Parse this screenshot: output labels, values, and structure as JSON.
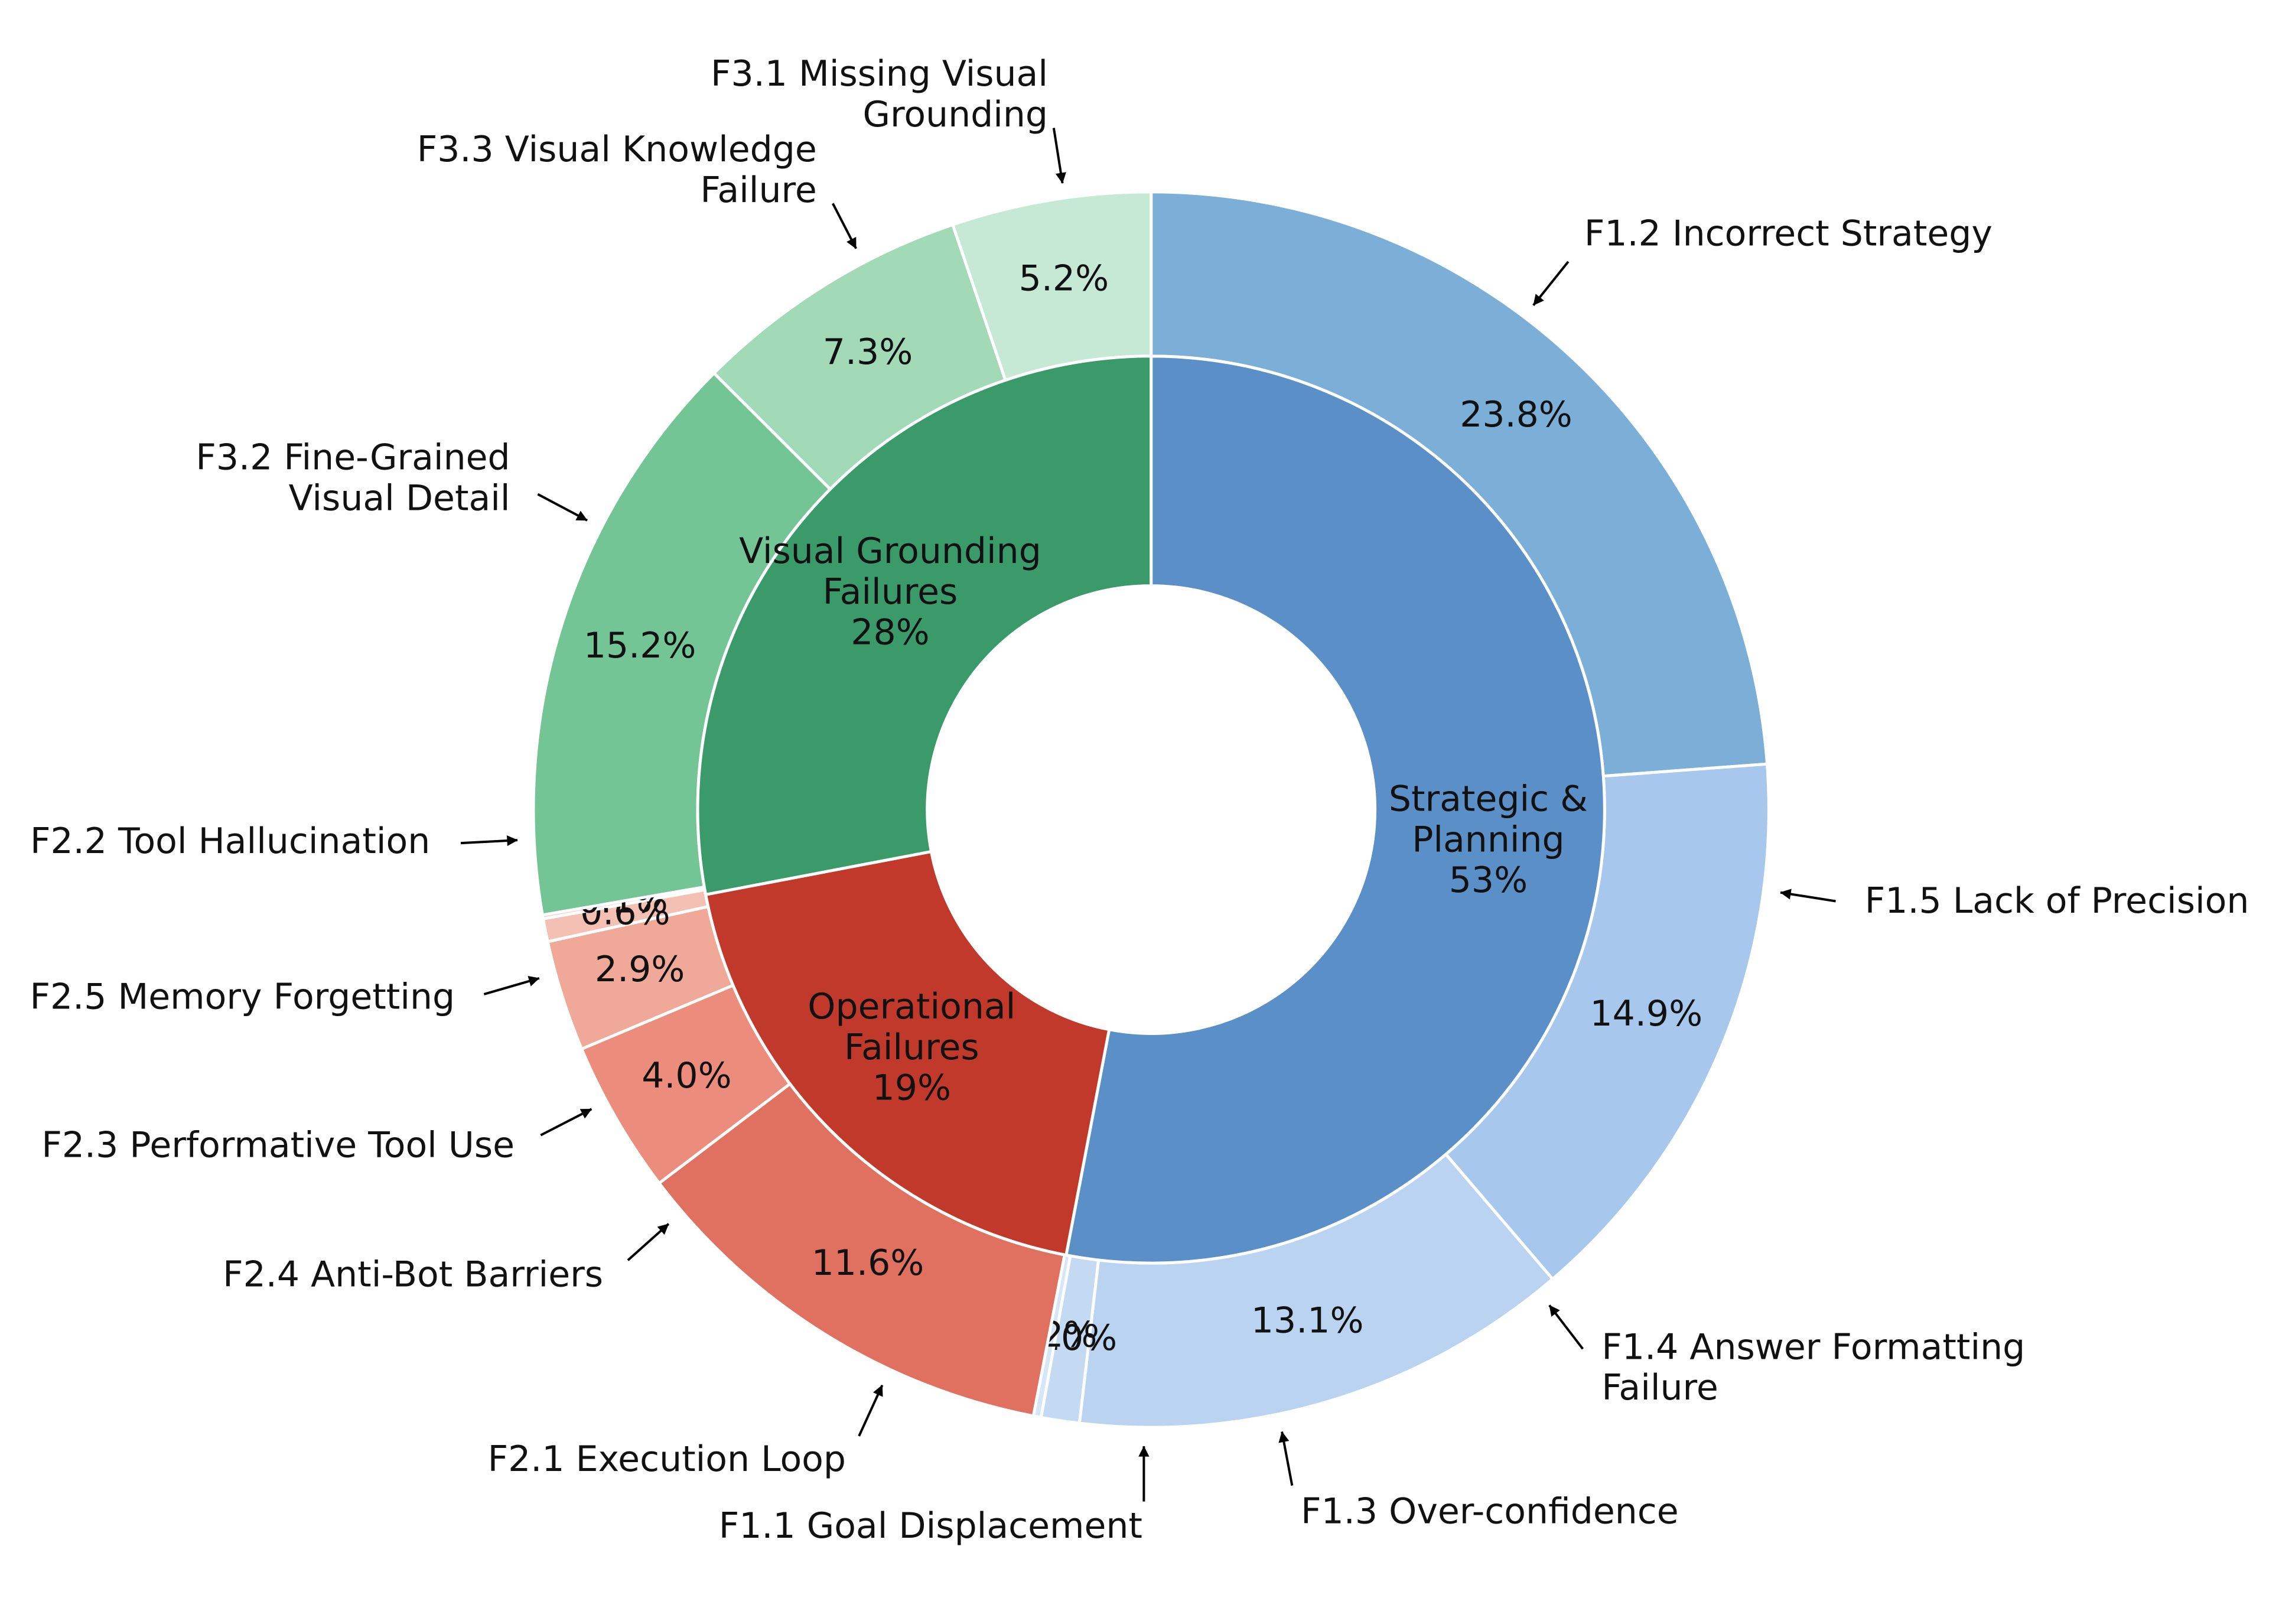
{
  "chart_data": {
    "type": "donut",
    "inner": {
      "labels": [
        "Strategic &\nPlanning",
        "Operational\nFailures",
        "Visual Grounding\nFailures"
      ],
      "values": [
        53,
        19,
        28
      ],
      "value_labels": [
        "53%",
        "19%",
        "28%"
      ],
      "colors": [
        "#5b8fc7",
        "#c0392b",
        "#3a9a6a"
      ]
    },
    "outer": {
      "labels": [
        "F1.2 Incorrect Strategy",
        "F1.5 Lack of Precision",
        "F1.4 Answer Formatting\nFailure",
        "F1.3 Over-confidence",
        "F1.1 Goal Displacement",
        "F2.1 Execution Loop",
        "F2.4 Anti-Bot Barriers",
        "F2.3 Performative Tool Use",
        "F2.5 Memory Forgetting",
        "F2.2 Tool Hallucination",
        "F3.2 Fine-Grained\nVisual Detail",
        "F3.3 Visual Knowledge\nFailure",
        "F3.1 Missing Visual\nGrounding"
      ],
      "values": [
        23.8,
        14.9,
        13.1,
        1.0,
        0.2,
        11.6,
        4.0,
        2.9,
        0.6,
        0.1,
        15.2,
        7.3,
        5.2
      ],
      "value_labels": [
        "23.8%",
        "14.9%",
        "13.1%",
        "1.0%",
        "0.2%",
        "11.6%",
        "4.0%",
        "2.9%",
        "0.6%",
        "0.1%",
        "15.2%",
        "7.3%",
        "5.2%"
      ],
      "colors": [
        "#7bafd8",
        "#a7c8ec",
        "#b9d3f0",
        "#c4daf3",
        "#d5e6f8",
        "#e07060",
        "#ec8c7c",
        "#f0a898",
        "#f4c0b4",
        "#f5d0c9",
        "#74c596",
        "#a2d9b7",
        "#c6e9d5"
      ]
    }
  }
}
